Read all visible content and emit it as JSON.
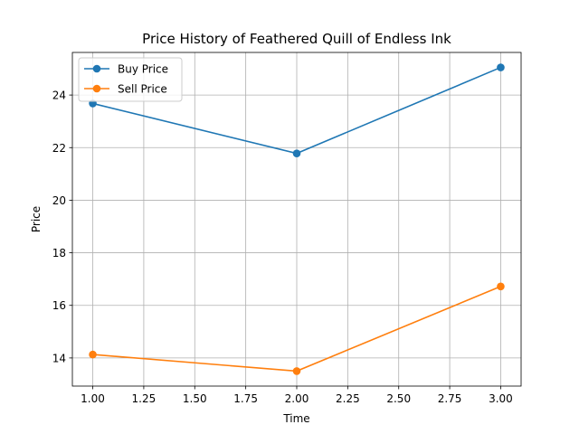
{
  "chart_data": {
    "type": "line",
    "title": "Price History of Feathered Quill of Endless Ink",
    "xlabel": "Time",
    "ylabel": "Price",
    "x": [
      1,
      2,
      3
    ],
    "series": [
      {
        "name": "Buy Price",
        "values": [
          23.68,
          21.78,
          25.05
        ],
        "color": "#1f77b4"
      },
      {
        "name": "Sell Price",
        "values": [
          14.13,
          13.5,
          16.72
        ],
        "color": "#ff7f0e"
      }
    ],
    "xlim": [
      0.9,
      3.1
    ],
    "ylim": [
      12.93,
      25.62
    ],
    "xticks": [
      "1.00",
      "1.25",
      "1.50",
      "1.75",
      "2.00",
      "2.25",
      "2.50",
      "2.75",
      "3.00"
    ],
    "xtick_values": [
      1.0,
      1.25,
      1.5,
      1.75,
      2.0,
      2.25,
      2.5,
      2.75,
      3.0
    ],
    "yticks": [
      "14",
      "16",
      "18",
      "20",
      "22",
      "24"
    ],
    "ytick_values": [
      14,
      16,
      18,
      20,
      22,
      24
    ],
    "grid": true,
    "legend_position": "top-left"
  }
}
